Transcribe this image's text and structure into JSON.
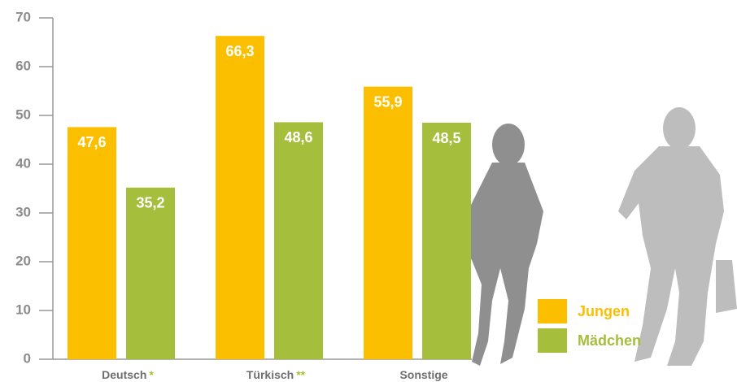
{
  "chart_data": {
    "type": "bar",
    "categories": [
      "Deutsch",
      "Türkisch",
      "Sonstige"
    ],
    "category_marks": [
      "*",
      "**",
      null
    ],
    "series": [
      {
        "name": "Jungen",
        "color": "#fbbf00",
        "values": [
          47.6,
          66.3,
          55.9
        ],
        "value_labels": [
          "47,6",
          "66,3",
          "55,9"
        ]
      },
      {
        "name": "Mädchen",
        "color": "#a5bf3c",
        "values": [
          35.2,
          48.6,
          48.5
        ],
        "value_labels": [
          "35,2",
          "48,6",
          "48,5"
        ]
      }
    ],
    "ylim": [
      0,
      70
    ],
    "yticks": [
      0,
      10,
      20,
      30,
      40,
      50,
      60,
      70
    ]
  }
}
